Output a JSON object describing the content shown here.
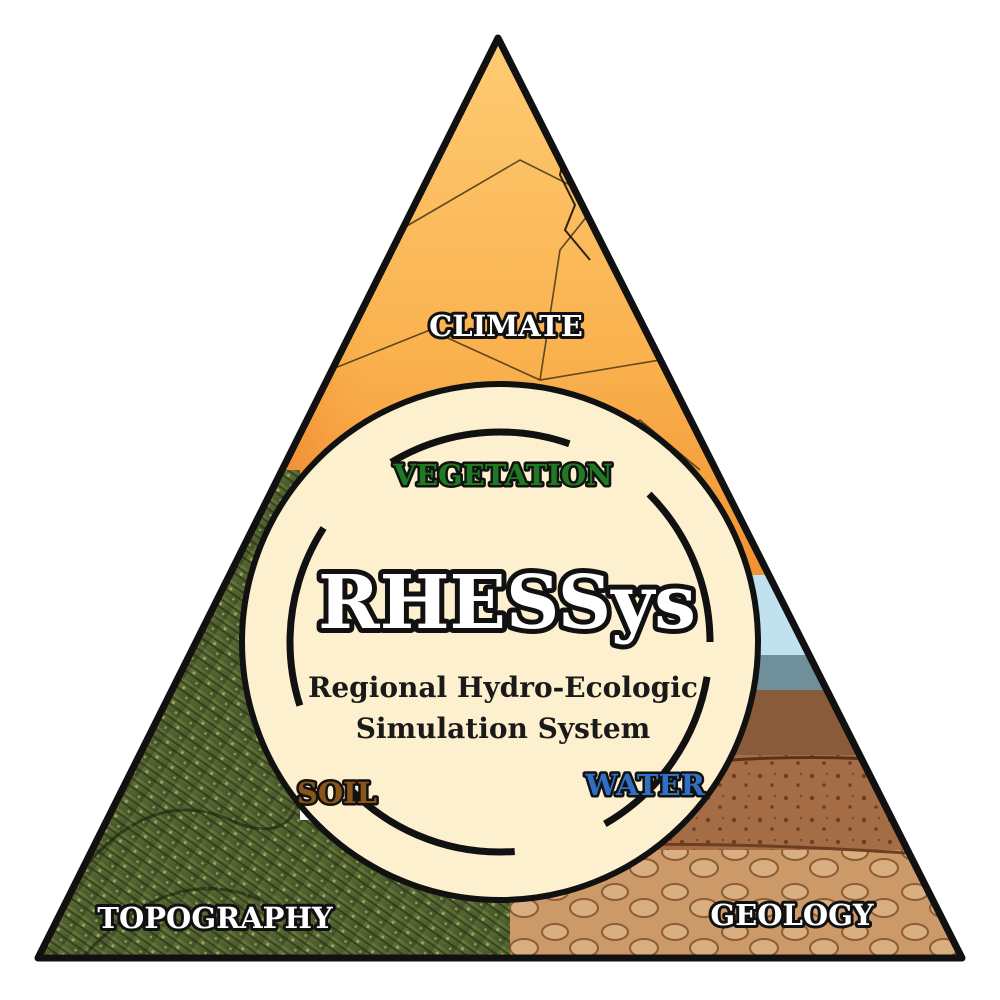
{
  "labels": {
    "climate": "CLIMATE",
    "topography": "TOPOGRAPHY",
    "geology": "GEOLOGY",
    "vegetation": "VEGETATION",
    "soil": "SOIL",
    "water": "WATER"
  },
  "center": {
    "title": "RHESSys",
    "subtitle_line1": "Regional Hydro-Ecologic",
    "subtitle_line2": "Simulation System"
  },
  "colors": {
    "climate_fill": "#f7b04a",
    "topography_fill": "#4d5e2c",
    "geology_fill": "#a86a40",
    "circle_fill": "#fdf0cf",
    "vegetation_text": "#1f7a22",
    "soil_text": "#8a5519",
    "water_text": "#2f6fc4"
  }
}
